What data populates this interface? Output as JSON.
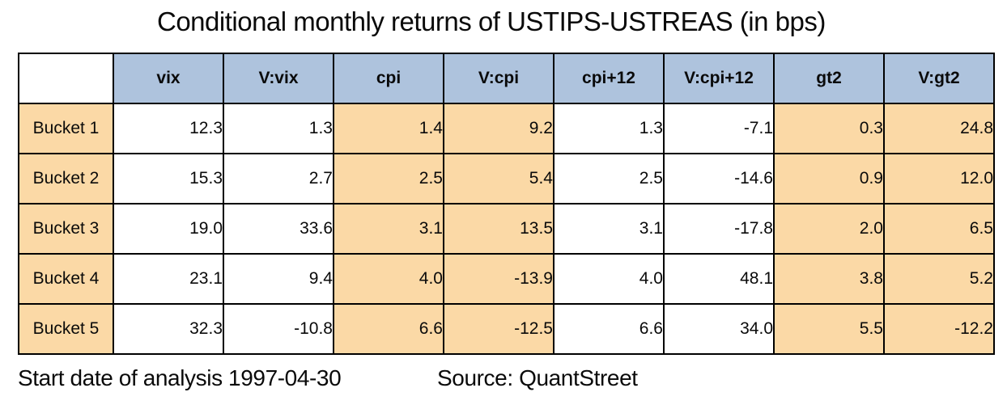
{
  "title": "Conditional monthly returns of USTIPS-USTREAS (in bps)",
  "footer": {
    "start_date_text": "Start date of analysis 1997-04-30",
    "source_text": "Source: QuantStreet"
  },
  "colors": {
    "header_bg": "#aec3dd",
    "highlight_bg": "#fbd9a6",
    "plain_bg": "#ffffff",
    "border": "#000000"
  },
  "table": {
    "headers": [
      "vix",
      "V:vix",
      "cpi",
      "V:cpi",
      "cpi+12",
      "V:cpi+12",
      "gt2",
      "V:gt2"
    ],
    "rows": [
      {
        "label": "Bucket 1",
        "values": [
          "12.3",
          "1.3",
          "1.4",
          "9.2",
          "1.3",
          "-7.1",
          "0.3",
          "24.8"
        ]
      },
      {
        "label": "Bucket 2",
        "values": [
          "15.3",
          "2.7",
          "2.5",
          "5.4",
          "2.5",
          "-14.6",
          "0.9",
          "12.0"
        ]
      },
      {
        "label": "Bucket 3",
        "values": [
          "19.0",
          "33.6",
          "3.1",
          "13.5",
          "3.1",
          "-17.8",
          "2.0",
          "6.5"
        ]
      },
      {
        "label": "Bucket 4",
        "values": [
          "23.1",
          "9.4",
          "4.0",
          "-13.9",
          "4.0",
          "48.1",
          "3.8",
          "5.2"
        ]
      },
      {
        "label": "Bucket 5",
        "values": [
          "32.3",
          "-10.8",
          "6.6",
          "-12.5",
          "6.6",
          "34.0",
          "5.5",
          "-12.2"
        ]
      }
    ],
    "highlighted_columns": [
      "cpi",
      "V:cpi",
      "gt2",
      "V:gt2"
    ]
  },
  "chart_data": {
    "type": "table",
    "title": "Conditional monthly returns of USTIPS-USTREAS (in bps)",
    "columns": [
      "vix",
      "V:vix",
      "cpi",
      "V:cpi",
      "cpi+12",
      "V:cpi+12",
      "gt2",
      "V:gt2"
    ],
    "row_labels": [
      "Bucket 1",
      "Bucket 2",
      "Bucket 3",
      "Bucket 4",
      "Bucket 5"
    ],
    "rows": [
      [
        12.3,
        1.3,
        1.4,
        9.2,
        1.3,
        -7.1,
        0.3,
        24.8
      ],
      [
        15.3,
        2.7,
        2.5,
        5.4,
        2.5,
        -14.6,
        0.9,
        12.0
      ],
      [
        19.0,
        33.6,
        3.1,
        13.5,
        3.1,
        -17.8,
        2.0,
        6.5
      ],
      [
        23.1,
        9.4,
        4.0,
        -13.9,
        4.0,
        48.1,
        3.8,
        5.2
      ],
      [
        32.3,
        -10.8,
        6.6,
        -12.5,
        6.6,
        34.0,
        5.5,
        -12.2
      ]
    ],
    "annotations": [
      "Start date of analysis 1997-04-30",
      "Source: QuantStreet"
    ]
  }
}
